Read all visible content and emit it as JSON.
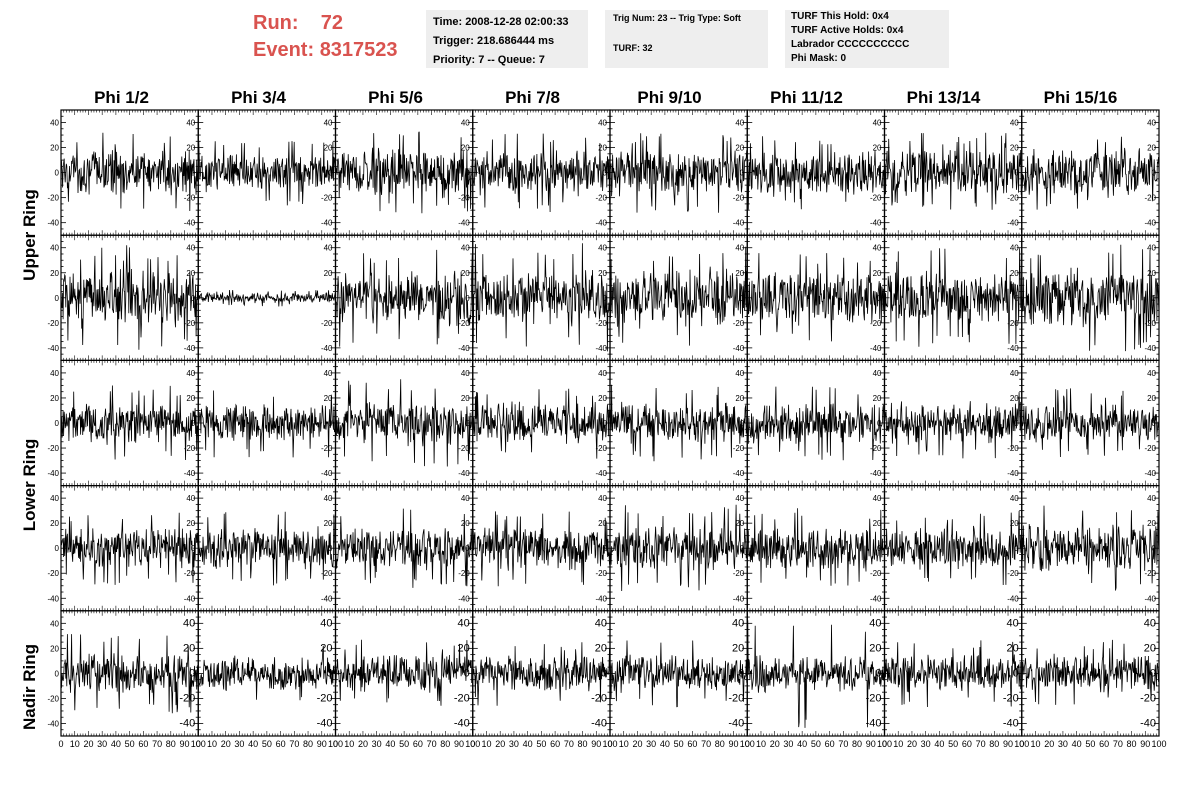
{
  "run": {
    "run_label": "Run:",
    "run_value": "72",
    "event_label": "Event:",
    "event_value": "8317523"
  },
  "info_time": {
    "time": "Time: 2008-12-28 02:00:33",
    "trigger": "Trigger: 218.686444 ms",
    "priority": "Priority: 7 -- Queue: 7"
  },
  "info_trig": {
    "trig": "Trig Num: 23 -- Trig Type: Soft",
    "turf": "TURF: 32"
  },
  "info_turf": {
    "this_hold": "TURF This Hold: 0x4",
    "active_holds": "TURF Active Holds: 0x4",
    "labrador": "Labrador CCCCCCCCCC",
    "phi_mask": "Phi Mask: 0"
  },
  "columns": [
    "Phi 1/2",
    "Phi 3/4",
    "Phi 5/6",
    "Phi 7/8",
    "Phi 9/10",
    "Phi 11/12",
    "Phi 13/14",
    "Phi 15/16"
  ],
  "rings": [
    "Upper Ring",
    "Lower Ring",
    "Nadir Ring"
  ],
  "colors": {
    "header_red": "#d9534f",
    "info_bg": "#eeeeee",
    "trace": "#000000"
  },
  "chart_data": {
    "type": "line",
    "description_rows": 5,
    "description_cols": 8,
    "xlim": [
      0,
      100
    ],
    "ylim": [
      -50,
      50
    ],
    "x_ticks": [
      0,
      10,
      20,
      30,
      40,
      50,
      60,
      70,
      80,
      90,
      100
    ],
    "x_tick_labels_row_nadir": [
      "0",
      "10",
      "20",
      "30",
      "40",
      "50",
      "60",
      "70",
      "80",
      "90",
      "100"
    ],
    "y_ticks": [
      -40,
      -20,
      0,
      20,
      40
    ],
    "y_tick_labels": [
      "-40",
      "-20",
      "0",
      "20",
      "40"
    ],
    "samples_per_trace": 260,
    "series": [
      {
        "row": 0,
        "col": 0,
        "amplitude": 13,
        "spike": 32
      },
      {
        "row": 0,
        "col": 1,
        "amplitude": 11,
        "spike": 28
      },
      {
        "row": 0,
        "col": 2,
        "amplitude": 14,
        "spike": 33
      },
      {
        "row": 0,
        "col": 3,
        "amplitude": 13,
        "spike": 32
      },
      {
        "row": 0,
        "col": 4,
        "amplitude": 14,
        "spike": 33
      },
      {
        "row": 0,
        "col": 5,
        "amplitude": 13,
        "spike": 30
      },
      {
        "row": 0,
        "col": 6,
        "amplitude": 14,
        "spike": 32
      },
      {
        "row": 0,
        "col": 7,
        "amplitude": 14,
        "spike": 30
      },
      {
        "row": 1,
        "col": 0,
        "amplitude": 17,
        "spike": 42
      },
      {
        "row": 1,
        "col": 1,
        "amplitude": 3,
        "spike": 7
      },
      {
        "row": 1,
        "col": 2,
        "amplitude": 16,
        "spike": 40
      },
      {
        "row": 1,
        "col": 3,
        "amplitude": 16,
        "spike": 44
      },
      {
        "row": 1,
        "col": 4,
        "amplitude": 17,
        "spike": 42
      },
      {
        "row": 1,
        "col": 5,
        "amplitude": 15,
        "spike": 38
      },
      {
        "row": 1,
        "col": 6,
        "amplitude": 15,
        "spike": 40
      },
      {
        "row": 1,
        "col": 7,
        "amplitude": 17,
        "spike": 44
      },
      {
        "row": 2,
        "col": 0,
        "amplitude": 12,
        "spike": 30
      },
      {
        "row": 2,
        "col": 1,
        "amplitude": 11,
        "spike": 28
      },
      {
        "row": 2,
        "col": 2,
        "amplitude": 13,
        "spike": 35
      },
      {
        "row": 2,
        "col": 3,
        "amplitude": 12,
        "spike": 30
      },
      {
        "row": 2,
        "col": 4,
        "amplitude": 12,
        "spike": 32
      },
      {
        "row": 2,
        "col": 5,
        "amplitude": 12,
        "spike": 30
      },
      {
        "row": 2,
        "col": 6,
        "amplitude": 12,
        "spike": 30
      },
      {
        "row": 2,
        "col": 7,
        "amplitude": 11,
        "spike": 28
      },
      {
        "row": 3,
        "col": 0,
        "amplitude": 12,
        "spike": 30
      },
      {
        "row": 3,
        "col": 1,
        "amplitude": 12,
        "spike": 30
      },
      {
        "row": 3,
        "col": 2,
        "amplitude": 13,
        "spike": 32
      },
      {
        "row": 3,
        "col": 3,
        "amplitude": 13,
        "spike": 31
      },
      {
        "row": 3,
        "col": 4,
        "amplitude": 13,
        "spike": 35
      },
      {
        "row": 3,
        "col": 5,
        "amplitude": 13,
        "spike": 32
      },
      {
        "row": 3,
        "col": 6,
        "amplitude": 12,
        "spike": 30
      },
      {
        "row": 3,
        "col": 7,
        "amplitude": 14,
        "spike": 35
      },
      {
        "row": 4,
        "col": 0,
        "amplitude": 12,
        "spike": 32
      },
      {
        "row": 4,
        "col": 1,
        "amplitude": 10,
        "spike": 25
      },
      {
        "row": 4,
        "col": 2,
        "amplitude": 11,
        "spike": 27
      },
      {
        "row": 4,
        "col": 3,
        "amplitude": 10,
        "spike": 26
      },
      {
        "row": 4,
        "col": 4,
        "amplitude": 11,
        "spike": 27
      },
      {
        "row": 4,
        "col": 5,
        "amplitude": 11,
        "spike": 45
      },
      {
        "row": 4,
        "col": 6,
        "amplitude": 11,
        "spike": 27
      },
      {
        "row": 4,
        "col": 7,
        "amplitude": 11,
        "spike": 27
      }
    ]
  }
}
